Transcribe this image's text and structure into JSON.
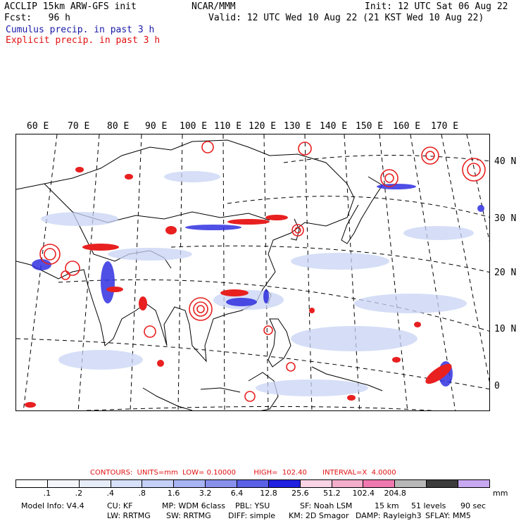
{
  "header": {
    "left1": "ACCLIP 15km ARW-GFS init",
    "center1": "NCAR/MMM",
    "right1": "Init: 12 UTC Sat 06 Aug 22",
    "left2": "Fcst:   96 h",
    "right2": "Valid: 12 UTC Wed 10 Aug 22 (21 KST Wed 10 Aug 22)",
    "cumulus": "Cumulus precip. in past 3 h",
    "explicit": "Explicit precip. in past 3 h"
  },
  "map": {
    "lon_labels": [
      "60 E",
      "70 E",
      "80 E",
      "90 E",
      "100 E",
      "110 E",
      "120 E",
      "130 E",
      "140 E",
      "150 E",
      "160 E",
      "170 E"
    ],
    "lat_labels": [
      "40 N",
      "30 N",
      "20 N",
      "10 N",
      "0"
    ],
    "colors": {
      "cumulus": "#3030e0",
      "cumulus_light": "#c8d4f4",
      "explicit": "#e82020",
      "coast": "#000000"
    }
  },
  "contours": {
    "units_text": "CONTOURS:  UNITS=mm  LOW= 0.10000",
    "high_text": "HIGH=  102.40",
    "interval_text": "INTERVAL=X  4.0000"
  },
  "colorbar": {
    "colors": [
      "#ffffff",
      "#f4f6fc",
      "#e6ecf8",
      "#d6e0f8",
      "#c4d0f8",
      "#a8b4f4",
      "#8890ec",
      "#5a60e6",
      "#2020e0",
      "#f8d4e4",
      "#f4aecc",
      "#f078b0",
      "#b8b8b8",
      "#3c3c3c",
      "#c8a8f0"
    ],
    "ticks": [
      ".1",
      ".2",
      ".4",
      ".8",
      "1.6",
      "3.2",
      "6.4",
      "12.8",
      "25.6",
      "51.2",
      "102.4",
      "204.8"
    ],
    "unit": "mm"
  },
  "footer": {
    "model": "Model Info: V4.4",
    "cu": "CU: KF",
    "mp": "MP: WDM 6class",
    "pbl": "PBL: YSU",
    "sf": "SF: Noah LSM",
    "res": "15 km",
    "levels": "51 levels",
    "dt": "90 sec",
    "lw": "LW: RRTMG",
    "sw": "SW: RRTMG",
    "diff": "DIFF: simple",
    "km": "KM: 2D Smagor",
    "damp": "DAMP: Rayleigh3",
    "sflay": "SFLAY: MM5"
  }
}
